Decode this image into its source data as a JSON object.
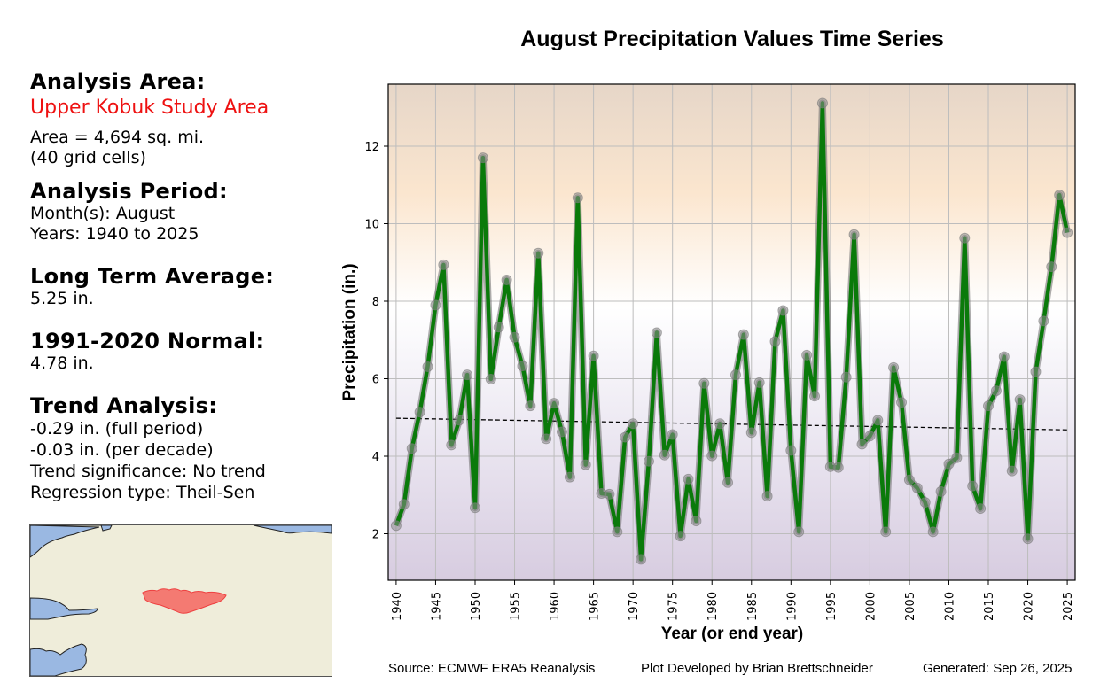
{
  "info_panel": {
    "area_heading": "Analysis Area:",
    "area_name": "Upper Kobuk Study Area",
    "area_size": "Area = 4,694 sq. mi.",
    "grid_cells": "(40 grid cells)",
    "period_heading": "Analysis Period:",
    "months": "Month(s): August",
    "years": "Years: 1940 to 2025",
    "lta_heading": "Long Term Average:",
    "lta_value": "5.25 in.",
    "normal_heading": "1991-2020 Normal:",
    "normal_value": "4.78 in.",
    "trend_heading": "Trend Analysis:",
    "trend_full": "-0.29 in. (full period)",
    "trend_decade": "-0.03 in. (per decade)",
    "trend_significance": "Trend significance: No trend",
    "regression_type": "Regression type: Theil-Sen"
  },
  "colors": {
    "area_name": "#ee1111",
    "line": "#0a7a0a",
    "marker": "#8c8c8c",
    "trend": "#000000",
    "map_land": "#efedda",
    "map_water": "#9ab8e2",
    "map_region": "#f47a72",
    "bg_top": "#e6d6c8",
    "bg_upper": "#fbe6cf",
    "bg_mid": "#ffffff",
    "bg_bottom": "#d8cde0"
  },
  "footer": {
    "source": "Source: ECMWF ERA5 Reanalysis",
    "developer": "Plot Developed by Brian Brettschneider",
    "generated": "Generated: Sep 26, 2025"
  },
  "chart_data": {
    "type": "line",
    "title": "August Precipitation Values Time Series",
    "xlabel": "Year (or end year)",
    "ylabel": "Precipitation (in.)",
    "xlim": [
      1939,
      2026
    ],
    "ylim": [
      0.8,
      13.6
    ],
    "grid": true,
    "x_ticks": [
      1940,
      1945,
      1950,
      1955,
      1960,
      1965,
      1970,
      1975,
      1980,
      1985,
      1990,
      1995,
      2000,
      2005,
      2010,
      2015,
      2020,
      2025
    ],
    "y_ticks": [
      2,
      4,
      6,
      8,
      10,
      12
    ],
    "x": [
      1940,
      1941,
      1942,
      1943,
      1944,
      1945,
      1946,
      1947,
      1948,
      1949,
      1950,
      1951,
      1952,
      1953,
      1954,
      1955,
      1956,
      1957,
      1958,
      1959,
      1960,
      1961,
      1962,
      1963,
      1964,
      1965,
      1966,
      1967,
      1968,
      1969,
      1970,
      1971,
      1972,
      1973,
      1974,
      1975,
      1976,
      1977,
      1978,
      1979,
      1980,
      1981,
      1982,
      1983,
      1984,
      1985,
      1986,
      1987,
      1988,
      1989,
      1990,
      1991,
      1992,
      1993,
      1994,
      1995,
      1996,
      1997,
      1998,
      1999,
      2000,
      2001,
      2002,
      2003,
      2004,
      2005,
      2006,
      2007,
      2008,
      2009,
      2010,
      2011,
      2012,
      2013,
      2014,
      2015,
      2016,
      2017,
      2018,
      2019,
      2020,
      2021,
      2022,
      2023,
      2024,
      2025
    ],
    "series": [
      {
        "name": "August Precipitation",
        "values": [
          2.21,
          2.76,
          4.2,
          5.14,
          6.31,
          7.9,
          8.94,
          4.29,
          4.93,
          6.1,
          2.67,
          11.7,
          5.99,
          7.33,
          8.55,
          7.07,
          6.33,
          5.3,
          9.24,
          4.45,
          5.37,
          4.63,
          3.46,
          10.67,
          3.78,
          6.59,
          3.04,
          3.02,
          2.05,
          4.49,
          4.84,
          1.34,
          3.87,
          7.19,
          4.03,
          4.56,
          1.94,
          3.41,
          2.33,
          5.88,
          4.01,
          4.84,
          3.32,
          6.1,
          7.14,
          4.61,
          5.9,
          2.97,
          6.96,
          7.76,
          4.15,
          2.05,
          6.61,
          5.55,
          13.11,
          3.73,
          3.71,
          6.04,
          9.72,
          4.31,
          4.52,
          4.93,
          2.05,
          6.29,
          5.39,
          3.39,
          3.18,
          2.81,
          2.05,
          3.09,
          3.8,
          3.96,
          9.63,
          3.23,
          2.65,
          5.3,
          5.69,
          6.57,
          3.62,
          5.46,
          1.87,
          6.18,
          7.49,
          8.89,
          10.74,
          9.77
        ]
      },
      {
        "name": "Theil-Sen trend",
        "style": "dashed",
        "x": [
          1940,
          2025
        ],
        "values": [
          4.98,
          4.68
        ]
      }
    ]
  }
}
